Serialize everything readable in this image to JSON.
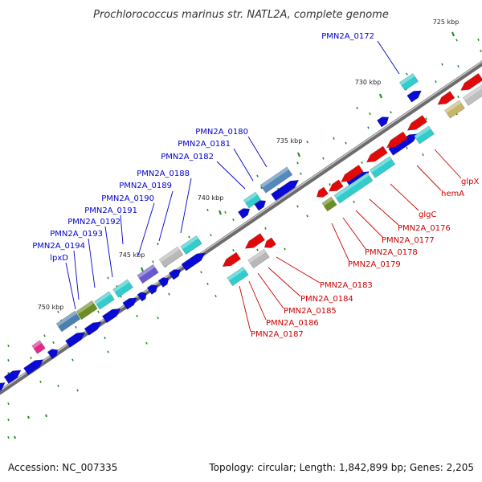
{
  "title": "Prochlorococcus marinus str. NATL2A, complete genome",
  "footer": {
    "accession": "Accession: NC_007335",
    "summary": "Topology: circular; Length: 1,842,899 bp; Genes: 2,205"
  },
  "ticks": [
    "725 kbp",
    "730 kbp",
    "735 kbp",
    "740 kbp",
    "745 kbp",
    "750 kbp"
  ],
  "labels_blue": [
    "PMN2A_0172",
    "PMN2A_0180",
    "PMN2A_0181",
    "PMN2A_0182",
    "PMN2A_0188",
    "PMN2A_0189",
    "PMN2A_0190",
    "PMN2A_0191",
    "PMN2A_0192",
    "PMN2A_0193",
    "PMN2A_0194",
    "lpxD"
  ],
  "labels_red": [
    "glpX",
    "hemA",
    "glgC",
    "PMN2A_0176",
    "PMN2A_0177",
    "PMN2A_0178",
    "PMN2A_0179",
    "PMN2A_0183",
    "PMN2A_0184",
    "PMN2A_0185",
    "PMN2A_0186",
    "PMN2A_0187"
  ],
  "colors": {
    "forward_cds": "#0a0ad6",
    "reverse_cds": "#e00a0a",
    "cyan_feature": "#33cccc",
    "backbone": "#888888",
    "tick_mark": "#2a8a2a",
    "label_blue": "#0000cc",
    "label_red": "#cc0000"
  }
}
